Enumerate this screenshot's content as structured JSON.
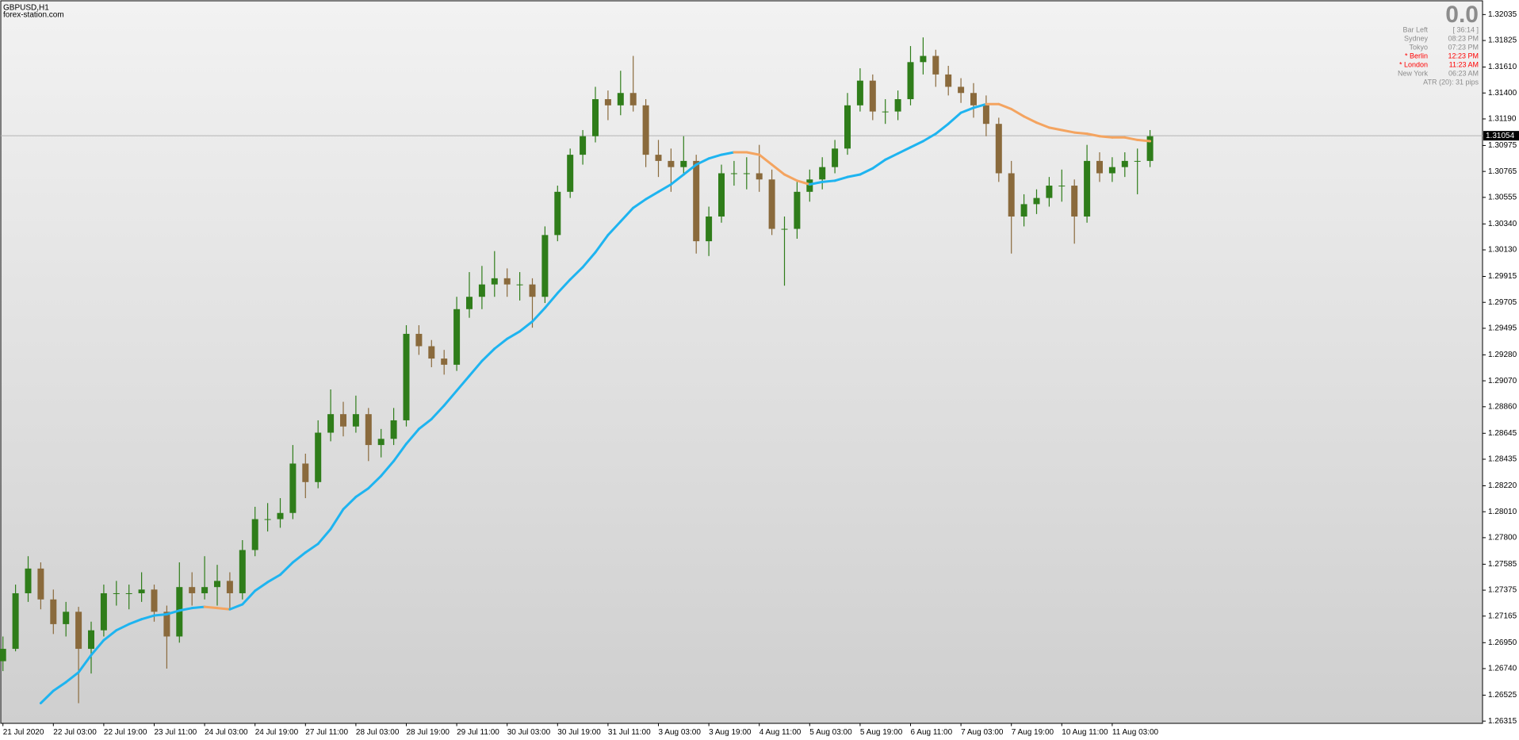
{
  "chart_data": {
    "type": "candlestick",
    "symbol": "GBPUSD,H1",
    "source": "forex-station.com",
    "categories": [
      "21 Jul 2020",
      null,
      null,
      null,
      "22 Jul 03:00",
      null,
      null,
      null,
      "22 Jul 19:00",
      null,
      null,
      null,
      "23 Jul 11:00",
      null,
      null,
      null,
      "24 Jul 03:00",
      null,
      null,
      null,
      "24 Jul 19:00",
      null,
      null,
      null,
      "27 Jul 11:00",
      null,
      null,
      null,
      "28 Jul 03:00",
      null,
      null,
      null,
      "28 Jul 19:00",
      null,
      null,
      null,
      "29 Jul 11:00",
      null,
      null,
      null,
      "30 Jul 03:00",
      null,
      null,
      null,
      "30 Jul 19:00",
      null,
      null,
      null,
      "31 Jul 11:00",
      null,
      null,
      null,
      "3 Aug 03:00",
      null,
      null,
      null,
      "3 Aug 19:00",
      null,
      null,
      null,
      "4 Aug 11:00",
      null,
      null,
      null,
      "5 Aug 03:00",
      null,
      null,
      null,
      "5 Aug 19:00",
      null,
      null,
      null,
      "6 Aug 11:00",
      null,
      null,
      null,
      "7 Aug 03:00",
      null,
      null,
      null,
      "7 Aug 19:00",
      null,
      null,
      null,
      "10 Aug 11:00",
      null,
      null,
      null,
      "11 Aug 03:00",
      null,
      null,
      null
    ],
    "ohlc": [
      [
        1.268,
        1.27,
        1.2672,
        1.269
      ],
      [
        1.269,
        1.2742,
        1.2688,
        1.2735
      ],
      [
        1.2735,
        1.2765,
        1.2728,
        1.2755
      ],
      [
        1.2755,
        1.276,
        1.2722,
        1.273
      ],
      [
        1.273,
        1.2738,
        1.2702,
        1.271
      ],
      [
        1.271,
        1.2728,
        1.27,
        1.272
      ],
      [
        1.272,
        1.2724,
        1.2646,
        1.269
      ],
      [
        1.269,
        1.2712,
        1.267,
        1.2705
      ],
      [
        1.2705,
        1.2742,
        1.27,
        1.2735
      ],
      [
        1.2735,
        1.2745,
        1.2725,
        1.2735
      ],
      [
        1.2735,
        1.2742,
        1.2722,
        1.2735
      ],
      [
        1.2735,
        1.2752,
        1.2728,
        1.2738
      ],
      [
        1.2738,
        1.2742,
        1.2712,
        1.272
      ],
      [
        1.272,
        1.2725,
        1.2674,
        1.27
      ],
      [
        1.27,
        1.276,
        1.2695,
        1.274
      ],
      [
        1.274,
        1.2752,
        1.2725,
        1.2735
      ],
      [
        1.2735,
        1.2765,
        1.273,
        1.274
      ],
      [
        1.274,
        1.2758,
        1.2725,
        1.2745
      ],
      [
        1.2745,
        1.2752,
        1.2722,
        1.2735
      ],
      [
        1.2735,
        1.2778,
        1.273,
        1.277
      ],
      [
        1.277,
        1.2805,
        1.2765,
        1.2795
      ],
      [
        1.2795,
        1.2808,
        1.2785,
        1.2795
      ],
      [
        1.2795,
        1.2812,
        1.2788,
        1.28
      ],
      [
        1.28,
        1.2855,
        1.2795,
        1.284
      ],
      [
        1.284,
        1.2848,
        1.2812,
        1.2825
      ],
      [
        1.2825,
        1.2875,
        1.282,
        1.2865
      ],
      [
        1.2865,
        1.29,
        1.2858,
        1.288
      ],
      [
        1.288,
        1.289,
        1.2862,
        1.287
      ],
      [
        1.287,
        1.2895,
        1.2865,
        1.288
      ],
      [
        1.288,
        1.2885,
        1.2842,
        1.2855
      ],
      [
        1.2855,
        1.2868,
        1.2845,
        1.286
      ],
      [
        1.286,
        1.2885,
        1.2855,
        1.2875
      ],
      [
        1.2875,
        1.2952,
        1.287,
        1.2945
      ],
      [
        1.2945,
        1.2952,
        1.2928,
        1.2935
      ],
      [
        1.2935,
        1.294,
        1.2918,
        1.2925
      ],
      [
        1.2925,
        1.2932,
        1.2912,
        1.292
      ],
      [
        1.292,
        1.2975,
        1.2915,
        1.2965
      ],
      [
        1.2965,
        1.2995,
        1.2958,
        1.2975
      ],
      [
        1.2975,
        1.3,
        1.2965,
        1.2985
      ],
      [
        1.2985,
        1.3012,
        1.2975,
        1.299
      ],
      [
        1.299,
        1.2998,
        1.2975,
        1.2985
      ],
      [
        1.2985,
        1.2995,
        1.2972,
        1.2985
      ],
      [
        1.2985,
        1.299,
        1.295,
        1.2975
      ],
      [
        1.2975,
        1.3032,
        1.297,
        1.3025
      ],
      [
        1.3025,
        1.3065,
        1.302,
        1.306
      ],
      [
        1.306,
        1.3095,
        1.3055,
        1.309
      ],
      [
        1.309,
        1.311,
        1.3082,
        1.3105
      ],
      [
        1.3105,
        1.3145,
        1.31,
        1.3135
      ],
      [
        1.3135,
        1.3142,
        1.3118,
        1.313
      ],
      [
        1.313,
        1.3158,
        1.3122,
        1.314
      ],
      [
        1.314,
        1.317,
        1.3125,
        1.313
      ],
      [
        1.313,
        1.3135,
        1.308,
        1.309
      ],
      [
        1.309,
        1.3102,
        1.3072,
        1.3085
      ],
      [
        1.3085,
        1.3095,
        1.306,
        1.308
      ],
      [
        1.308,
        1.3105,
        1.3075,
        1.3085
      ],
      [
        1.3085,
        1.309,
        1.301,
        1.302
      ],
      [
        1.302,
        1.3048,
        1.3008,
        1.304
      ],
      [
        1.304,
        1.3082,
        1.3035,
        1.3075
      ],
      [
        1.3075,
        1.3085,
        1.3065,
        1.3075
      ],
      [
        1.3075,
        1.3088,
        1.3062,
        1.3075
      ],
      [
        1.3075,
        1.3098,
        1.306,
        1.307
      ],
      [
        1.307,
        1.3078,
        1.3025,
        1.303
      ],
      [
        1.303,
        1.304,
        1.2984,
        1.303
      ],
      [
        1.303,
        1.3068,
        1.3022,
        1.306
      ],
      [
        1.306,
        1.3078,
        1.3052,
        1.307
      ],
      [
        1.307,
        1.3088,
        1.3062,
        1.308
      ],
      [
        1.308,
        1.3102,
        1.3075,
        1.3095
      ],
      [
        1.3095,
        1.314,
        1.309,
        1.313
      ],
      [
        1.313,
        1.316,
        1.3125,
        1.315
      ],
      [
        1.315,
        1.3155,
        1.3118,
        1.3125
      ],
      [
        1.3125,
        1.3135,
        1.3115,
        1.3125
      ],
      [
        1.3125,
        1.3142,
        1.3118,
        1.3135
      ],
      [
        1.3135,
        1.3178,
        1.313,
        1.3165
      ],
      [
        1.3165,
        1.3185,
        1.3155,
        1.317
      ],
      [
        1.317,
        1.3175,
        1.3145,
        1.3155
      ],
      [
        1.3155,
        1.3162,
        1.3138,
        1.3145
      ],
      [
        1.3145,
        1.3152,
        1.3132,
        1.314
      ],
      [
        1.314,
        1.3148,
        1.312,
        1.313
      ],
      [
        1.313,
        1.3138,
        1.3105,
        1.3115
      ],
      [
        1.3115,
        1.312,
        1.3068,
        1.3075
      ],
      [
        1.3075,
        1.3085,
        1.301,
        1.304
      ],
      [
        1.304,
        1.3058,
        1.3032,
        1.305
      ],
      [
        1.305,
        1.3062,
        1.3042,
        1.3055
      ],
      [
        1.3055,
        1.3072,
        1.3048,
        1.3065
      ],
      [
        1.3065,
        1.3078,
        1.3052,
        1.3065
      ],
      [
        1.3065,
        1.307,
        1.3018,
        1.304
      ],
      [
        1.304,
        1.3098,
        1.3035,
        1.3085
      ],
      [
        1.3085,
        1.3092,
        1.3068,
        1.3075
      ],
      [
        1.3075,
        1.3088,
        1.3068,
        1.308
      ],
      [
        1.308,
        1.3092,
        1.3072,
        1.3085
      ],
      [
        1.3085,
        1.3095,
        1.3058,
        1.3085
      ],
      [
        1.3085,
        1.311,
        1.308,
        1.3105
      ]
    ],
    "colors": {
      "up": "#2f7d1a",
      "down": "#8a6a3c"
    },
    "ma": {
      "up_color": "#1eb4f0",
      "down_color": "#f4a460",
      "values": [
        null,
        null,
        null,
        1.2646,
        1.2656,
        1.2663,
        1.2671,
        1.2685,
        1.2697,
        1.2705,
        1.271,
        1.2714,
        1.2717,
        1.2718,
        1.2721,
        1.2723,
        1.2724,
        1.2723,
        1.2722,
        1.2726,
        1.2737,
        1.2744,
        1.275,
        1.276,
        1.2768,
        1.2775,
        1.2787,
        1.2803,
        1.2813,
        1.282,
        1.283,
        1.2842,
        1.2856,
        1.2868,
        1.2876,
        1.2887,
        1.2899,
        1.2911,
        1.2923,
        1.2933,
        1.2941,
        1.2947,
        1.2955,
        1.2966,
        1.2978,
        1.2989,
        1.2999,
        1.3011,
        1.3025,
        1.3036,
        1.3047,
        1.3054,
        1.306,
        1.3066,
        1.3074,
        1.3082,
        1.3087,
        1.309,
        1.3092,
        1.3092,
        1.309,
        1.3082,
        1.3074,
        1.3069,
        1.3066,
        1.3068,
        1.3069,
        1.3072,
        1.3074,
        1.3079,
        1.3086,
        1.3091,
        1.3096,
        1.3101,
        1.3107,
        1.3115,
        1.3124,
        1.3128,
        1.3131,
        1.3131,
        1.3127,
        1.3121,
        1.3116,
        1.3112,
        1.311,
        1.3108,
        1.3107,
        1.3105,
        1.3104,
        1.3104,
        1.3102,
        1.3101
      ]
    },
    "current_price": {
      "value": 1.31054,
      "label": "1.31054"
    },
    "ylim": [
      1.263,
      1.3214
    ],
    "yticks": [
      1.32035,
      {
        "value": 1.31825,
        "label": "1.31825"
      },
      {
        "value": 1.3161,
        "label": "1.31610"
      },
      {
        "value": 1.314,
        "label": "1.31400"
      },
      {
        "value": 1.3119,
        "label": "1.31190"
      },
      1.30975,
      1.30765,
      1.30555,
      {
        "value": 1.3034,
        "label": "1.30340"
      },
      {
        "value": 1.3013,
        "label": "1.30130"
      },
      1.29915,
      1.29705,
      1.29495,
      {
        "value": 1.2928,
        "label": "1.29280"
      },
      {
        "value": 1.2907,
        "label": "1.29070"
      },
      {
        "value": 1.2886,
        "label": "1.28860"
      },
      1.28645,
      1.28435,
      {
        "value": 1.2822,
        "label": "1.28220"
      },
      {
        "value": 1.2801,
        "label": "1.28010"
      },
      {
        "value": 1.278,
        "label": "1.27800"
      },
      1.27585,
      1.27375,
      1.27165,
      {
        "value": 1.2695,
        "label": "1.26950"
      },
      {
        "value": 1.2674,
        "label": "1.26740"
      },
      1.26525,
      1.26315
    ],
    "info": {
      "counter": "0.0",
      "rows": [
        {
          "label": "Bar Left",
          "value": "[ 36:14 ]",
          "color": "#8c8c8c"
        },
        {
          "label": "Sydney",
          "value": "08:23 PM",
          "color": "#8c8c8c"
        },
        {
          "label": "Tokyo",
          "value": "07:23 PM",
          "color": "#8c8c8c"
        },
        {
          "label": "* Berlin",
          "value": "12:23 PM",
          "color": "#ff0000"
        },
        {
          "label": "* London",
          "value": "11:23 AM",
          "color": "#ff0000"
        },
        {
          "label": "New York",
          "value": "06:23 AM",
          "color": "#8c8c8c"
        }
      ],
      "atr": "ATR (20): 31 pips"
    }
  }
}
